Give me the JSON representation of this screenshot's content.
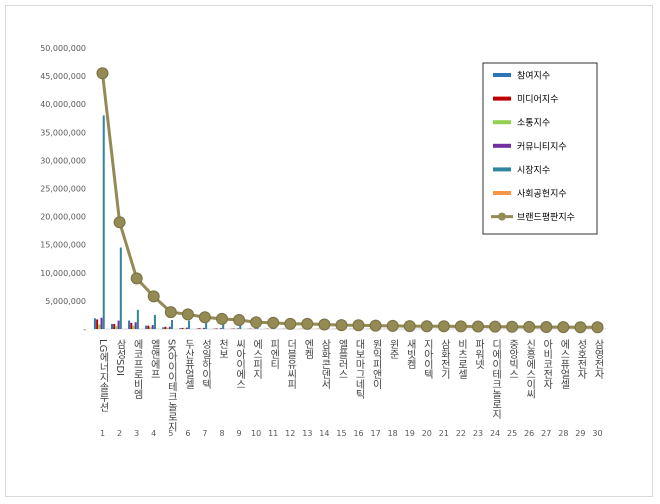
{
  "chart_data": {
    "type": "bar",
    "categories": [
      "LG에너지솔루션",
      "삼성SDI",
      "에코프로비엠",
      "엘앤에프",
      "SK아이이테크놀로지",
      "두산퓨얼셀",
      "성일하이텍",
      "천보",
      "씨아이에스",
      "에스피지",
      "피엔티",
      "더블유씨피",
      "엔켐",
      "삼화콘덴서",
      "엘플러스",
      "대보마그네틱",
      "원익피앤이",
      "윈준",
      "새빗켐",
      "지아이텍",
      "삼화전기",
      "비츠로셀",
      "파워넷",
      "디에이테크놀로지",
      "중앙빅스",
      "신흥에스이씨",
      "아비코전자",
      "에스퓨얼셀",
      "성호전자",
      "삼영전자"
    ],
    "rank_labels": [
      "1",
      "2",
      "3",
      "4",
      "5",
      "6",
      "7",
      "8",
      "9",
      "10",
      "11",
      "12",
      "13",
      "14",
      "15",
      "16",
      "17",
      "18",
      "19",
      "20",
      "21",
      "22",
      "23",
      "24",
      "25",
      "26",
      "27",
      "28",
      "29",
      "30"
    ],
    "ylim": [
      0,
      50000000
    ],
    "yticks": [
      "50,000,000",
      "45,000,000",
      "40,000,000",
      "35,000,000",
      "30,000,000",
      "25,000,000",
      "20,000,000",
      "15,000,000",
      "10,000,000",
      "5,000,000",
      "-"
    ],
    "legend_position": "top-right",
    "series": [
      {
        "name": "참여지수",
        "color": "#2e75b6",
        "values": [
          1900000,
          900000,
          1500000,
          600000,
          300000,
          150000,
          100000,
          80000,
          60000,
          50000,
          40000,
          35000,
          30000,
          25000,
          20000,
          20000,
          18000,
          16000,
          15000,
          14000,
          12000,
          11000,
          10000,
          9000,
          8000,
          7000,
          6000,
          5000,
          4000,
          3000
        ]
      },
      {
        "name": "미디어지수",
        "color": "#c00000",
        "values": [
          1700000,
          900000,
          1100000,
          600000,
          400000,
          200000,
          150000,
          100000,
          90000,
          60000,
          50000,
          40000,
          35000,
          30000,
          25000,
          22000,
          20000,
          18000,
          16000,
          15000,
          14000,
          12000,
          11000,
          10000,
          9000,
          8000,
          7000,
          6000,
          5000,
          4000
        ]
      },
      {
        "name": "소통지수",
        "color": "#92d050",
        "values": [
          800000,
          500000,
          600000,
          300000,
          200000,
          100000,
          80000,
          60000,
          50000,
          40000,
          30000,
          25000,
          20000,
          18000,
          15000,
          14000,
          12000,
          11000,
          10000,
          9000,
          8000,
          7000,
          6000,
          5000,
          4000,
          3500,
          3000,
          2500,
          2000,
          1500
        ]
      },
      {
        "name": "커뮤니티지수",
        "color": "#7030a0",
        "values": [
          2000000,
          1500000,
          1200000,
          700000,
          400000,
          250000,
          200000,
          150000,
          120000,
          90000,
          70000,
          60000,
          50000,
          45000,
          40000,
          35000,
          30000,
          28000,
          25000,
          22000,
          20000,
          18000,
          16000,
          15000,
          14000,
          12000,
          11000,
          10000,
          9000,
          8000
        ]
      },
      {
        "name": "시장지수",
        "color": "#31859c",
        "values": [
          38000000,
          14500000,
          3400000,
          2500000,
          1600000,
          1500000,
          1200000,
          900000,
          900000,
          700000,
          600000,
          500000,
          450000,
          400000,
          380000,
          350000,
          330000,
          300000,
          280000,
          260000,
          250000,
          230000,
          220000,
          200000,
          190000,
          180000,
          170000,
          160000,
          150000,
          140000
        ]
      },
      {
        "name": "사회공헌지수",
        "color": "#f79646",
        "values": [
          0,
          0,
          0,
          0,
          0,
          0,
          0,
          0,
          0,
          0,
          0,
          0,
          0,
          0,
          0,
          0,
          0,
          0,
          0,
          0,
          0,
          0,
          0,
          0,
          0,
          0,
          0,
          0,
          0,
          0
        ]
      },
      {
        "name": "브랜드평판지수",
        "color": "#948a54",
        "type": "line",
        "values": [
          45500000,
          19000000,
          9000000,
          5800000,
          3000000,
          2600000,
          2100000,
          1800000,
          1600000,
          1200000,
          1100000,
          900000,
          900000,
          800000,
          700000,
          650000,
          600000,
          560000,
          520000,
          500000,
          480000,
          460000,
          440000,
          420000,
          400000,
          380000,
          360000,
          340000,
          320000,
          300000
        ]
      }
    ]
  }
}
